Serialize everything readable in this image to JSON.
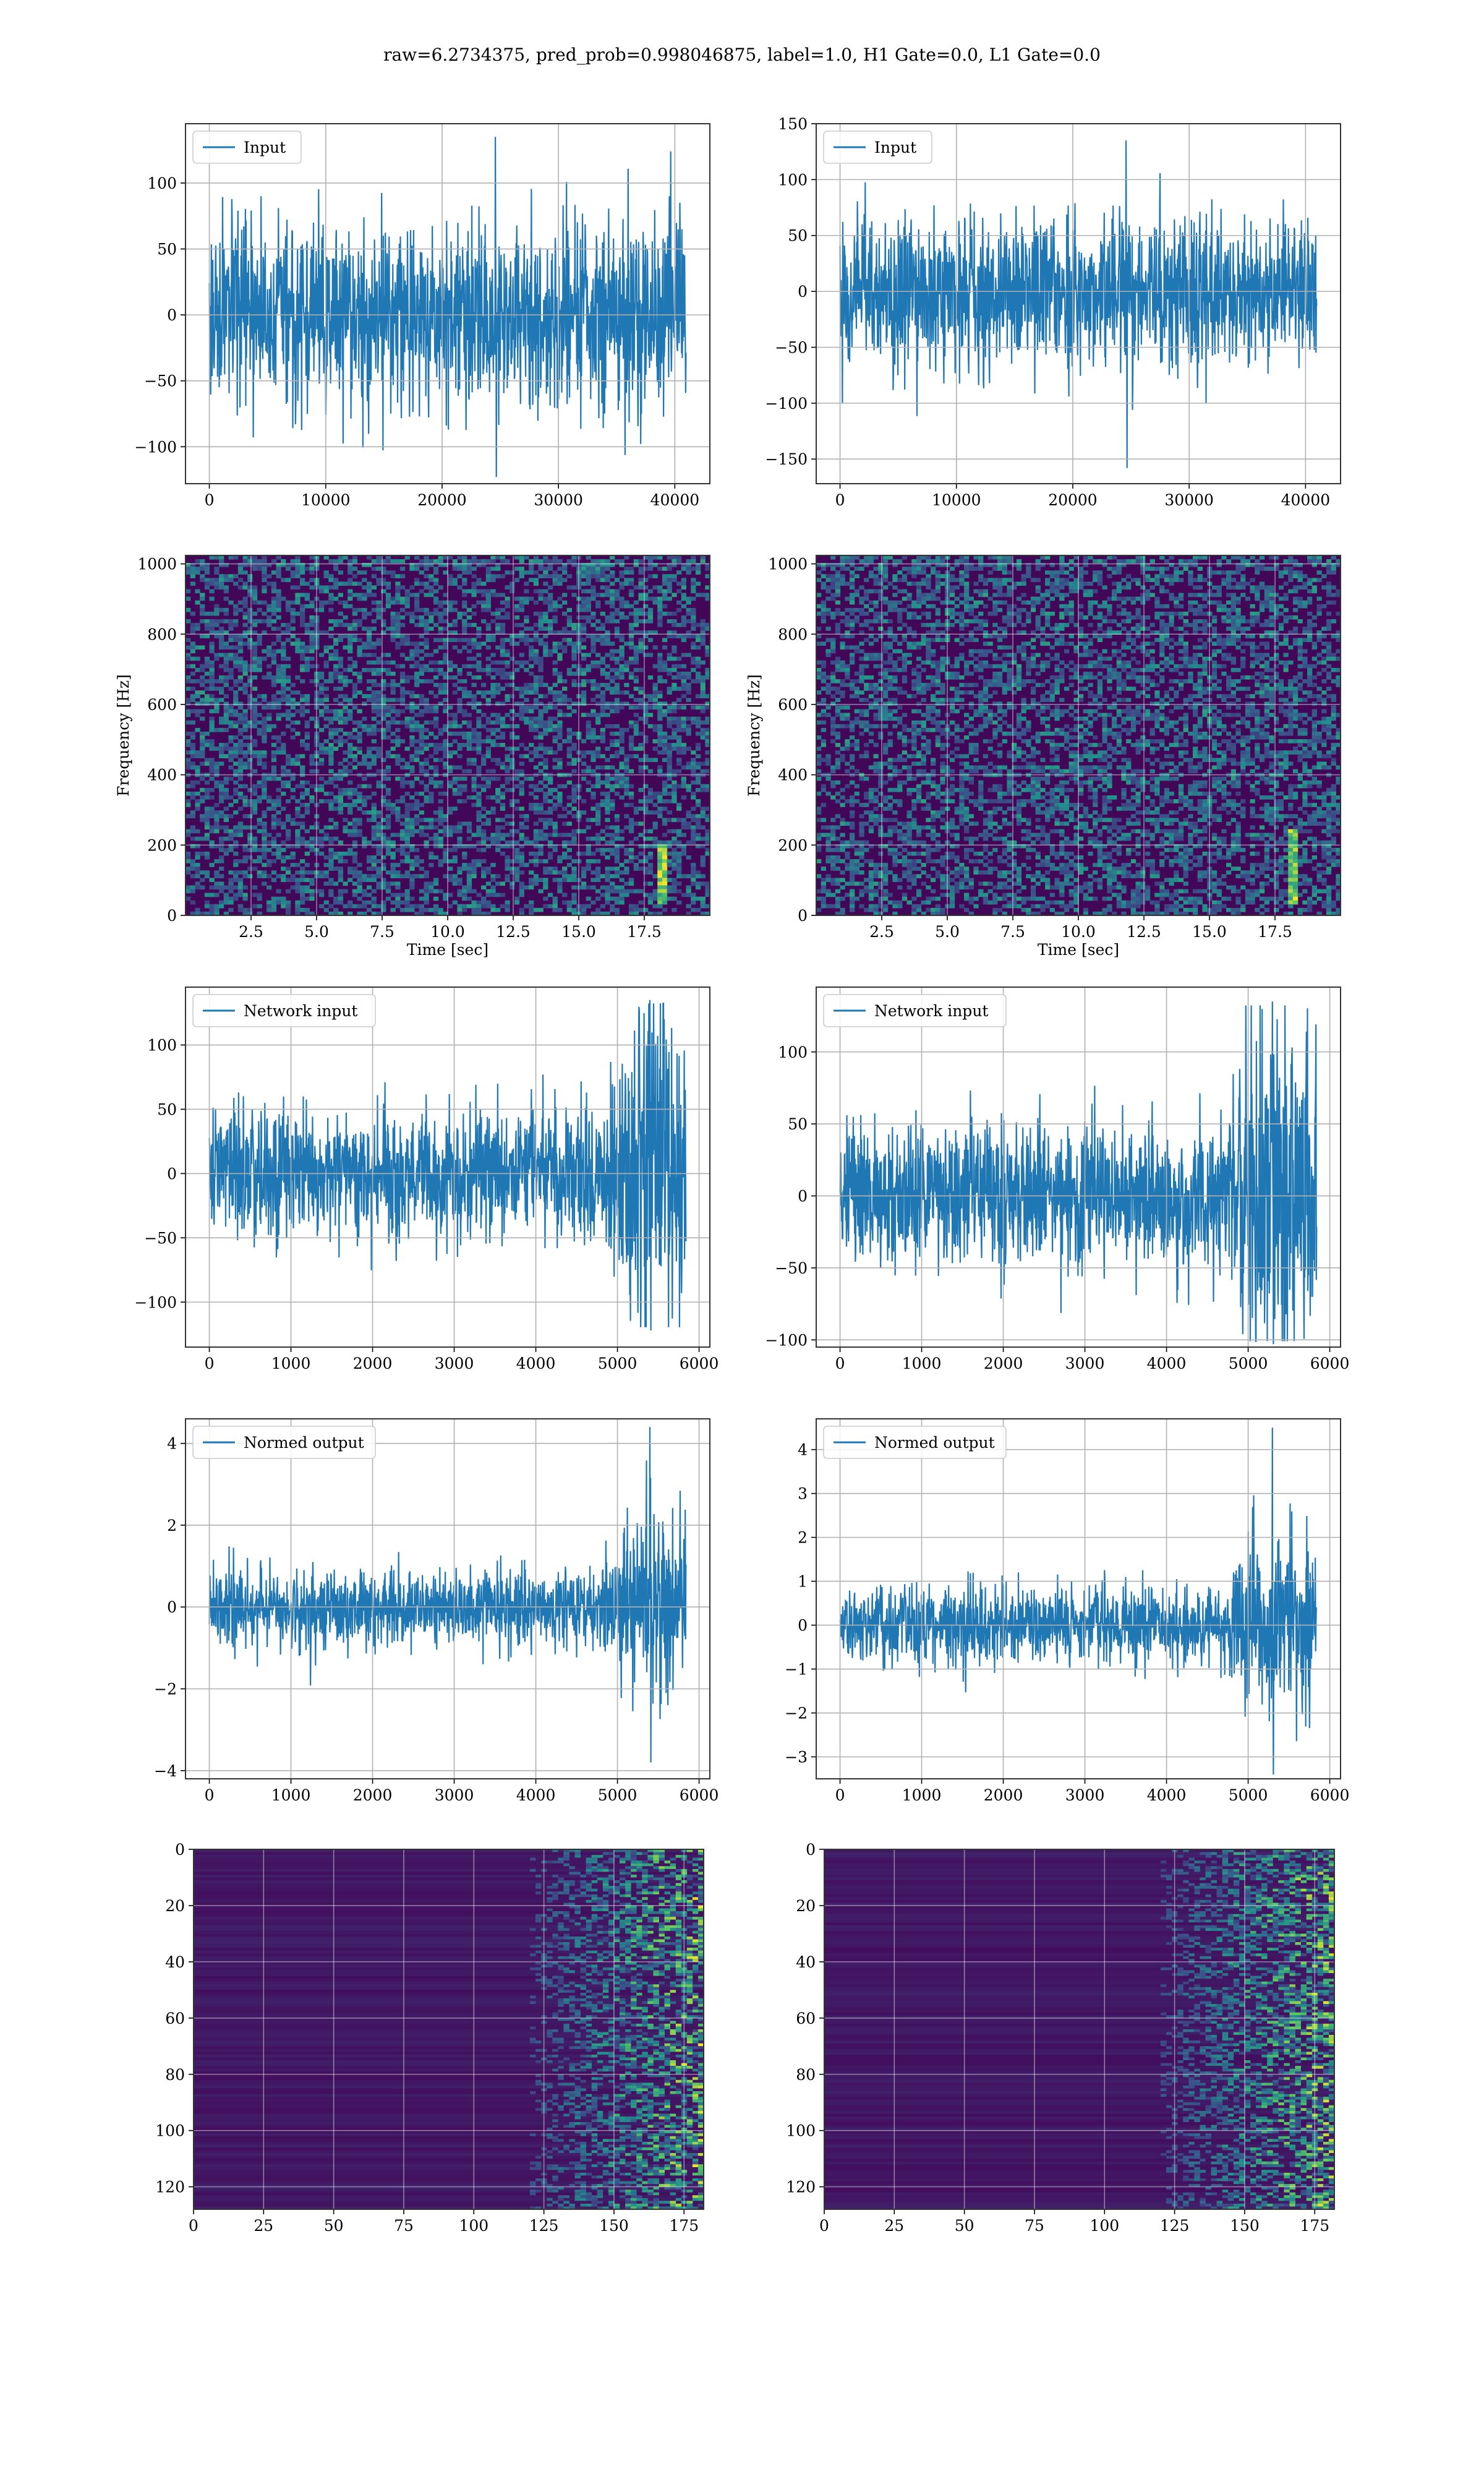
{
  "title": "raw=6.2734375, pred_prob=0.998046875, label=1.0, H1 Gate=0.0, L1 Gate=0.0",
  "colors": {
    "line": "#1f77b4",
    "viridis_dark": "#440154",
    "viridis_mid": "#21918c",
    "viridis_bright": "#fde725"
  },
  "chart_data": [
    {
      "id": "input-h1",
      "type": "line",
      "legend": "Input",
      "xlim": [
        -2048,
        43008
      ],
      "ylim": [
        -128,
        145
      ],
      "xticks": [
        0,
        10000,
        20000,
        30000,
        40000
      ],
      "yticks": [
        -100,
        -50,
        0,
        50,
        100
      ],
      "n": 40960,
      "envelope": {
        "upper": 80,
        "lower": -80,
        "peak_max": 135,
        "peak_min": -123
      }
    },
    {
      "id": "input-l1",
      "type": "line",
      "legend": "Input",
      "xlim": [
        -2048,
        43008
      ],
      "ylim": [
        -172,
        150
      ],
      "xticks": [
        0,
        10000,
        20000,
        30000,
        40000
      ],
      "yticks": [
        -150,
        -100,
        -50,
        0,
        50,
        100,
        150
      ],
      "n": 40960,
      "envelope": {
        "upper": 80,
        "lower": -80,
        "peak_max": 135,
        "peak_min": -158
      }
    },
    {
      "id": "spectrogram-h1",
      "type": "heatmap",
      "xlabel": "Time [sec]",
      "ylabel": "Frequency [Hz]",
      "xlim": [
        0,
        20
      ],
      "ylim": [
        0,
        1024
      ],
      "xticks": [
        2.5,
        5.0,
        7.5,
        10.0,
        12.5,
        15.0,
        17.5
      ],
      "yticks": [
        0,
        200,
        400,
        600,
        800,
        1000
      ],
      "chirp": {
        "time": 18.2,
        "freq_low": 30,
        "freq_high": 200
      }
    },
    {
      "id": "spectrogram-l1",
      "type": "heatmap",
      "xlabel": "Time [sec]",
      "ylabel": "Frequency [Hz]",
      "xlim": [
        0,
        20
      ],
      "ylim": [
        0,
        1024
      ],
      "xticks": [
        2.5,
        5.0,
        7.5,
        10.0,
        12.5,
        15.0,
        17.5
      ],
      "yticks": [
        0,
        200,
        400,
        600,
        800,
        1000
      ],
      "chirp": {
        "time": 18.2,
        "freq_low": 30,
        "freq_high": 250
      }
    },
    {
      "id": "network-input-h1",
      "type": "line",
      "legend": "Network input",
      "xlim": [
        -292,
        6132
      ],
      "ylim": [
        -135,
        145
      ],
      "xticks": [
        0,
        1000,
        2000,
        3000,
        4000,
        5000,
        6000
      ],
      "yticks": [
        -100,
        -50,
        0,
        50,
        100
      ],
      "n": 5840,
      "envelope": {
        "upper": 60,
        "lower": -60,
        "peak_max": 135,
        "peak_min": -122,
        "burst_at": 5400
      }
    },
    {
      "id": "network-input-l1",
      "type": "line",
      "legend": "Network input",
      "xlim": [
        -292,
        6132
      ],
      "ylim": [
        -105,
        145
      ],
      "xticks": [
        0,
        1000,
        2000,
        3000,
        4000,
        5000,
        6000
      ],
      "yticks": [
        -100,
        -50,
        0,
        50,
        100
      ],
      "n": 5840,
      "envelope": {
        "upper": 60,
        "lower": -60,
        "peak_max": 135,
        "peak_min": -103,
        "burst_at": 5300
      }
    },
    {
      "id": "normed-output-h1",
      "type": "line",
      "legend": "Normed output",
      "xlim": [
        -292,
        6132
      ],
      "ylim": [
        -4.2,
        4.6
      ],
      "xticks": [
        0,
        1000,
        2000,
        3000,
        4000,
        5000,
        6000
      ],
      "yticks": [
        -4,
        -2,
        0,
        2,
        4
      ],
      "n": 5840,
      "envelope": {
        "upper": 1.1,
        "lower": -1.1,
        "peak_max": 4.4,
        "peak_min": -3.8,
        "burst_at": 5400
      }
    },
    {
      "id": "normed-output-l1",
      "type": "line",
      "legend": "Normed output",
      "xlim": [
        -292,
        6132
      ],
      "ylim": [
        -3.5,
        4.7
      ],
      "xticks": [
        0,
        1000,
        2000,
        3000,
        4000,
        5000,
        6000
      ],
      "yticks": [
        -3,
        -2,
        -1,
        0,
        1,
        2,
        3,
        4
      ],
      "n": 5840,
      "envelope": {
        "upper": 1.0,
        "lower": -1.0,
        "peak_max": 4.5,
        "peak_min": -3.4,
        "burst_at": 5300
      }
    },
    {
      "id": "features-h1",
      "type": "heatmap",
      "xlim": [
        0,
        182
      ],
      "ylim": [
        128,
        0
      ],
      "xticks": [
        0,
        25,
        50,
        75,
        100,
        125,
        150,
        175
      ],
      "yticks": [
        0,
        20,
        40,
        60,
        80,
        100,
        120
      ],
      "active_from": 120
    },
    {
      "id": "features-l1",
      "type": "heatmap",
      "xlim": [
        0,
        182
      ],
      "ylim": [
        128,
        0
      ],
      "xticks": [
        0,
        25,
        50,
        75,
        100,
        125,
        150,
        175
      ],
      "yticks": [
        0,
        20,
        40,
        60,
        80,
        100,
        120
      ],
      "active_from": 120
    }
  ]
}
